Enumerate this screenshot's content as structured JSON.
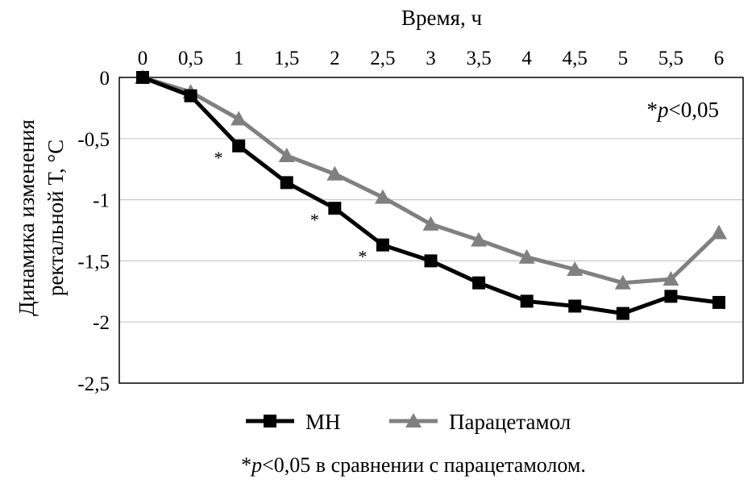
{
  "chart_data": {
    "type": "line",
    "xlabel": "Время, ч",
    "ylabel_line1": "Динамика изменения",
    "ylabel_line2": "ректальной T, °C",
    "x": [
      0,
      0.5,
      1,
      1.5,
      2,
      2.5,
      3,
      3.5,
      4,
      4.5,
      5,
      5.5,
      6
    ],
    "x_tick_labels": [
      "0",
      "0,5",
      "1",
      "1,5",
      "2",
      "2,5",
      "3",
      "3,5",
      "4",
      "4,5",
      "5",
      "5,5",
      "6"
    ],
    "y_tick_values": [
      0,
      -0.5,
      -1,
      -1.5,
      -2,
      -2.5
    ],
    "y_tick_labels": [
      "0",
      "-0,5",
      "-1",
      "-1,5",
      "-2",
      "-2,5"
    ],
    "ylim": [
      -2.5,
      0
    ],
    "xlim": [
      0,
      6
    ],
    "x_axis_position": "top",
    "grid": "horizontal",
    "legend_position": "bottom",
    "series": [
      {
        "name": "МН",
        "color": "#000000",
        "marker": "square",
        "values": [
          0,
          -0.15,
          -0.56,
          -0.86,
          -1.07,
          -1.37,
          -1.5,
          -1.68,
          -1.83,
          -1.87,
          -1.93,
          -1.79,
          -1.84
        ]
      },
      {
        "name": "Парацетамол",
        "color": "#808080",
        "marker": "triangle",
        "values": [
          0,
          -0.12,
          -0.34,
          -0.64,
          -0.79,
          -0.98,
          -1.2,
          -1.33,
          -1.47,
          -1.57,
          -1.68,
          -1.65,
          -1.27
        ]
      }
    ],
    "significance_marks": [
      {
        "x": 1,
        "text": "*"
      },
      {
        "x": 2,
        "text": "*"
      },
      {
        "x": 2.5,
        "text": "*"
      }
    ],
    "annotation_star": "*",
    "annotation_p": "p",
    "annotation_rest": "<0,05",
    "footnote_star": "*",
    "footnote_p": "p",
    "footnote_rest": "<0,05 в сравнении с парацетамолом."
  }
}
